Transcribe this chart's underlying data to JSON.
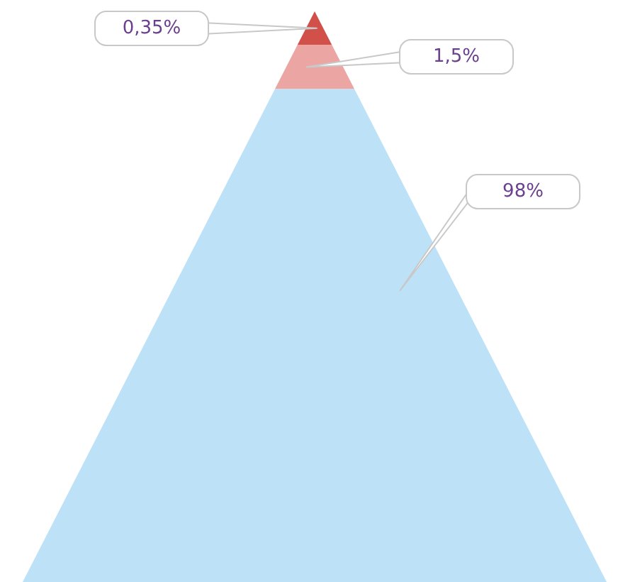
{
  "chart_data": {
    "type": "other",
    "categories": [
      null,
      null,
      null
    ],
    "values": [
      0.35,
      1.5,
      98
    ],
    "value_labels": [
      "0,35%",
      "1,5%",
      "98%"
    ],
    "colors": [
      "#d2504a",
      "#eba5a2",
      "#bde2f7"
    ]
  }
}
